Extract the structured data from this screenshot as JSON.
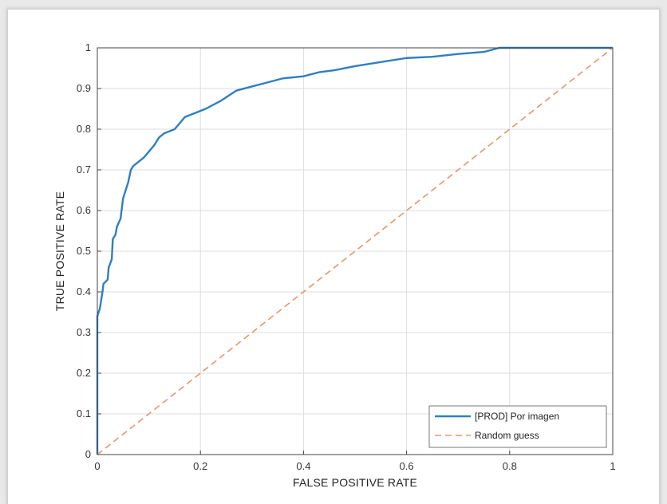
{
  "colors": {
    "roc": "#2f7fc1",
    "random": "#e8956b",
    "grid": "#dedede",
    "axis": "#444444"
  },
  "chart_data": {
    "type": "line",
    "title": "",
    "xlabel": "FALSE POSITIVE RATE",
    "ylabel": "TRUE POSITIVE RATE",
    "xlim": [
      0,
      1
    ],
    "ylim": [
      0,
      1
    ],
    "x_ticks": [
      "0",
      "0.2",
      "0.4",
      "0.6",
      "0.8",
      "1"
    ],
    "y_ticks": [
      "0",
      "0.1",
      "0.2",
      "0.3",
      "0.4",
      "0.5",
      "0.6",
      "0.7",
      "0.8",
      "0.9",
      "1"
    ],
    "grid": true,
    "legend_position": "bottom-right",
    "series": [
      {
        "name": "[PROD] Por imagen",
        "style": "solid",
        "points": [
          [
            0,
            0
          ],
          [
            0,
            0.34
          ],
          [
            0.005,
            0.36
          ],
          [
            0.01,
            0.4
          ],
          [
            0.012,
            0.42
          ],
          [
            0.02,
            0.43
          ],
          [
            0.022,
            0.46
          ],
          [
            0.028,
            0.48
          ],
          [
            0.03,
            0.53
          ],
          [
            0.035,
            0.54
          ],
          [
            0.038,
            0.56
          ],
          [
            0.045,
            0.58
          ],
          [
            0.048,
            0.61
          ],
          [
            0.05,
            0.63
          ],
          [
            0.055,
            0.65
          ],
          [
            0.06,
            0.67
          ],
          [
            0.065,
            0.7
          ],
          [
            0.07,
            0.71
          ],
          [
            0.08,
            0.72
          ],
          [
            0.09,
            0.73
          ],
          [
            0.1,
            0.745
          ],
          [
            0.11,
            0.76
          ],
          [
            0.12,
            0.78
          ],
          [
            0.13,
            0.79
          ],
          [
            0.15,
            0.8
          ],
          [
            0.17,
            0.83
          ],
          [
            0.19,
            0.84
          ],
          [
            0.21,
            0.85
          ],
          [
            0.24,
            0.87
          ],
          [
            0.27,
            0.895
          ],
          [
            0.3,
            0.905
          ],
          [
            0.33,
            0.915
          ],
          [
            0.36,
            0.925
          ],
          [
            0.4,
            0.93
          ],
          [
            0.43,
            0.94
          ],
          [
            0.46,
            0.945
          ],
          [
            0.5,
            0.955
          ],
          [
            0.55,
            0.965
          ],
          [
            0.6,
            0.975
          ],
          [
            0.65,
            0.978
          ],
          [
            0.7,
            0.985
          ],
          [
            0.75,
            0.99
          ],
          [
            0.78,
            1.0
          ],
          [
            0.85,
            1.0
          ],
          [
            1.0,
            1.0
          ]
        ]
      },
      {
        "name": "Random guess",
        "style": "dashed",
        "points": [
          [
            0,
            0
          ],
          [
            1,
            1
          ]
        ]
      }
    ]
  }
}
